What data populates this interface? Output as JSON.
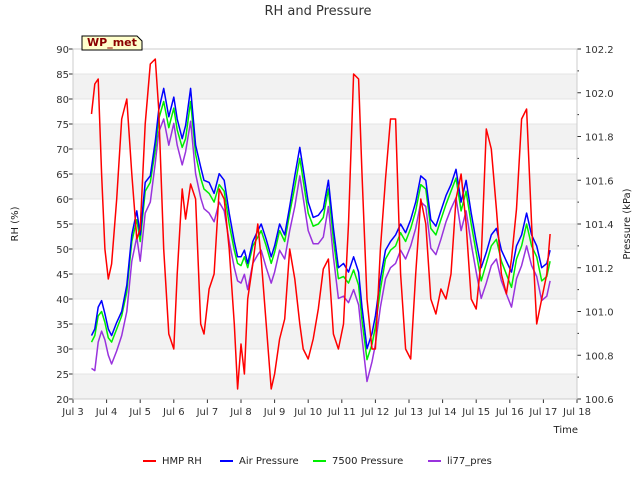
{
  "chart_data": {
    "type": "line",
    "title": "RH and Pressure",
    "site_label": "WP_met",
    "xlabel": "Time",
    "ylabel_left": "RH (%)",
    "ylabel_right": "Pressure (kPa)",
    "xlim": [
      3,
      18
    ],
    "ylim_left": [
      20,
      90
    ],
    "ylim_right": [
      100.6,
      102.2
    ],
    "x_ticks": [
      3,
      4,
      5,
      6,
      7,
      8,
      9,
      10,
      11,
      12,
      13,
      14,
      15,
      16,
      17,
      18
    ],
    "x_tick_labels": [
      "Jul 3",
      "Jul 4",
      "Jul 5",
      "Jul 6",
      "Jul 7",
      "Jul 8",
      "Jul 9",
      "Jul 10",
      "Jul 11",
      "Jul 12",
      "Jul 13",
      "Jul 14",
      "Jul 15",
      "Jul 16",
      "Jul 17",
      "Jul 18"
    ],
    "y_left_ticks": [
      20,
      25,
      30,
      35,
      40,
      45,
      50,
      55,
      60,
      65,
      70,
      75,
      80,
      85,
      90
    ],
    "y_right_ticks": [
      "100.6",
      "100.8",
      "101.0",
      "101.2",
      "101.4",
      "101.6",
      "101.8",
      "102.0",
      "102.2"
    ],
    "grid": true,
    "legend_position": "bottom",
    "series": [
      {
        "name": "HMP RH",
        "axis": "left",
        "color": "#ff0000",
        "x": [
          3.55,
          3.65,
          3.75,
          3.85,
          3.95,
          4.05,
          4.15,
          4.3,
          4.45,
          4.6,
          4.75,
          4.9,
          5.0,
          5.15,
          5.3,
          5.45,
          5.55,
          5.7,
          5.85,
          6.0,
          6.1,
          6.25,
          6.35,
          6.5,
          6.65,
          6.8,
          6.9,
          7.05,
          7.2,
          7.35,
          7.5,
          7.65,
          7.8,
          7.9,
          8.0,
          8.1,
          8.2,
          8.35,
          8.5,
          8.6,
          8.75,
          8.9,
          9.0,
          9.15,
          9.3,
          9.45,
          9.6,
          9.75,
          9.85,
          10.0,
          10.15,
          10.3,
          10.45,
          10.6,
          10.75,
          10.9,
          11.05,
          11.2,
          11.35,
          11.5,
          11.6,
          11.75,
          11.9,
          12.0,
          12.15,
          12.3,
          12.45,
          12.6,
          12.75,
          12.9,
          13.05,
          13.2,
          13.35,
          13.5,
          13.65,
          13.8,
          13.95,
          14.1,
          14.25,
          14.4,
          14.55,
          14.7,
          14.85,
          15.0,
          15.15,
          15.3,
          15.45,
          15.6,
          15.75,
          15.9,
          16.05,
          16.2,
          16.35,
          16.5,
          16.65,
          16.8,
          16.95,
          17.1,
          17.2
        ],
        "values": [
          77,
          83,
          84,
          65,
          50,
          44,
          47,
          60,
          76,
          80,
          65,
          52,
          54,
          75,
          87,
          88,
          78,
          50,
          33,
          30,
          45,
          62,
          56,
          63,
          60,
          35,
          33,
          42,
          45,
          62,
          60,
          50,
          35,
          22,
          31,
          25,
          40,
          47,
          55,
          48,
          35,
          22,
          25,
          32,
          36,
          50,
          44,
          35,
          30,
          28,
          32,
          38,
          46,
          48,
          33,
          30,
          35,
          55,
          85,
          84,
          65,
          40,
          30,
          30,
          50,
          64,
          76,
          76,
          45,
          30,
          28,
          45,
          60,
          55,
          40,
          37,
          42,
          40,
          45,
          60,
          65,
          55,
          40,
          38,
          48,
          74,
          70,
          58,
          45,
          41,
          48,
          58,
          76,
          78,
          55,
          35,
          40,
          45,
          53
        ]
      },
      {
        "name": "Air Pressure",
        "axis": "right",
        "color": "#0000ff",
        "x": [
          3.55,
          3.65,
          3.75,
          3.85,
          3.95,
          4.05,
          4.15,
          4.3,
          4.45,
          4.6,
          4.75,
          4.9,
          5.0,
          5.15,
          5.3,
          5.45,
          5.55,
          5.7,
          5.85,
          6.0,
          6.1,
          6.25,
          6.35,
          6.5,
          6.65,
          6.8,
          6.9,
          7.05,
          7.2,
          7.35,
          7.5,
          7.65,
          7.8,
          7.9,
          8.0,
          8.1,
          8.2,
          8.35,
          8.5,
          8.6,
          8.75,
          8.9,
          9.0,
          9.15,
          9.3,
          9.45,
          9.6,
          9.75,
          9.85,
          10.0,
          10.15,
          10.3,
          10.45,
          10.6,
          10.75,
          10.9,
          11.05,
          11.2,
          11.35,
          11.5,
          11.6,
          11.75,
          11.9,
          12.0,
          12.15,
          12.3,
          12.45,
          12.6,
          12.75,
          12.9,
          13.05,
          13.2,
          13.35,
          13.5,
          13.65,
          13.8,
          13.95,
          14.1,
          14.25,
          14.4,
          14.55,
          14.7,
          14.85,
          15.0,
          15.15,
          15.3,
          15.45,
          15.6,
          15.75,
          15.9,
          16.05,
          16.2,
          16.35,
          16.5,
          16.65,
          16.8,
          16.95,
          17.1,
          17.2
        ],
        "values": [
          100.89,
          100.92,
          101.02,
          101.05,
          100.99,
          100.92,
          100.89,
          100.95,
          101.0,
          101.12,
          101.35,
          101.46,
          101.35,
          101.59,
          101.62,
          101.78,
          101.92,
          102.02,
          101.89,
          101.98,
          101.88,
          101.79,
          101.85,
          102.02,
          101.76,
          101.66,
          101.6,
          101.59,
          101.54,
          101.63,
          101.6,
          101.45,
          101.32,
          101.25,
          101.25,
          101.28,
          101.22,
          101.32,
          101.37,
          101.4,
          101.33,
          101.25,
          101.3,
          101.4,
          101.35,
          101.48,
          101.62,
          101.75,
          101.65,
          101.5,
          101.43,
          101.44,
          101.47,
          101.6,
          101.38,
          101.2,
          101.22,
          101.18,
          101.25,
          101.18,
          101.02,
          100.83,
          100.9,
          100.98,
          101.15,
          101.28,
          101.32,
          101.35,
          101.4,
          101.36,
          101.42,
          101.5,
          101.62,
          101.6,
          101.42,
          101.39,
          101.46,
          101.53,
          101.58,
          101.65,
          101.5,
          101.6,
          101.45,
          101.32,
          101.2,
          101.27,
          101.35,
          101.38,
          101.28,
          101.23,
          101.18,
          101.3,
          101.35,
          101.45,
          101.35,
          101.3,
          101.2,
          101.22,
          101.28
        ]
      },
      {
        "name": "7500 Pressure",
        "axis": "right",
        "color": "#00ee00",
        "x": [
          3.55,
          3.65,
          3.75,
          3.85,
          3.95,
          4.05,
          4.15,
          4.3,
          4.45,
          4.6,
          4.75,
          4.9,
          5.0,
          5.15,
          5.3,
          5.45,
          5.55,
          5.7,
          5.85,
          6.0,
          6.1,
          6.25,
          6.35,
          6.5,
          6.65,
          6.8,
          6.9,
          7.05,
          7.2,
          7.35,
          7.5,
          7.65,
          7.8,
          7.9,
          8.0,
          8.1,
          8.2,
          8.35,
          8.5,
          8.6,
          8.75,
          8.9,
          9.0,
          9.15,
          9.3,
          9.45,
          9.6,
          9.75,
          9.85,
          10.0,
          10.15,
          10.3,
          10.45,
          10.6,
          10.75,
          10.9,
          11.05,
          11.2,
          11.35,
          11.5,
          11.6,
          11.75,
          11.9,
          12.0,
          12.15,
          12.3,
          12.45,
          12.6,
          12.75,
          12.9,
          13.05,
          13.2,
          13.35,
          13.5,
          13.65,
          13.8,
          13.95,
          14.1,
          14.25,
          14.4,
          14.55,
          14.7,
          14.85,
          15.0,
          15.15,
          15.3,
          15.45,
          15.6,
          15.75,
          15.9,
          16.05,
          16.2,
          16.35,
          16.5,
          16.65,
          16.8,
          16.95,
          17.1,
          17.2
        ],
        "values": [
          100.86,
          100.89,
          100.98,
          101.0,
          100.95,
          100.88,
          100.86,
          100.92,
          100.98,
          101.09,
          101.32,
          101.42,
          101.32,
          101.55,
          101.59,
          101.74,
          101.88,
          101.96,
          101.84,
          101.93,
          101.83,
          101.75,
          101.79,
          101.96,
          101.72,
          101.61,
          101.56,
          101.54,
          101.5,
          101.58,
          101.55,
          101.4,
          101.28,
          101.22,
          101.21,
          101.25,
          101.2,
          101.3,
          101.34,
          101.37,
          101.3,
          101.22,
          101.27,
          101.37,
          101.32,
          101.45,
          101.57,
          101.7,
          101.6,
          101.45,
          101.39,
          101.4,
          101.43,
          101.56,
          101.33,
          101.15,
          101.16,
          101.13,
          101.19,
          101.12,
          100.96,
          100.78,
          100.85,
          100.93,
          101.1,
          101.24,
          101.28,
          101.3,
          101.36,
          101.32,
          101.38,
          101.46,
          101.58,
          101.56,
          101.38,
          101.35,
          101.42,
          101.49,
          101.55,
          101.61,
          101.46,
          101.55,
          101.4,
          101.27,
          101.14,
          101.22,
          101.3,
          101.33,
          101.23,
          101.17,
          101.11,
          101.24,
          101.3,
          101.4,
          101.3,
          101.25,
          101.14,
          101.16,
          101.23
        ]
      },
      {
        "name": "li77_pres",
        "axis": "right",
        "color": "#9933dd",
        "x": [
          3.55,
          3.65,
          3.75,
          3.85,
          3.95,
          4.05,
          4.15,
          4.3,
          4.45,
          4.6,
          4.75,
          4.9,
          5.0,
          5.15,
          5.3,
          5.45,
          5.55,
          5.7,
          5.85,
          6.0,
          6.1,
          6.25,
          6.35,
          6.5,
          6.65,
          6.8,
          6.9,
          7.05,
          7.2,
          7.35,
          7.5,
          7.65,
          7.8,
          7.9,
          8.0,
          8.1,
          8.2,
          8.35,
          8.5,
          8.6,
          8.75,
          8.9,
          9.0,
          9.15,
          9.3,
          9.45,
          9.6,
          9.75,
          9.85,
          10.0,
          10.15,
          10.3,
          10.45,
          10.6,
          10.75,
          10.9,
          11.05,
          11.2,
          11.35,
          11.5,
          11.6,
          11.75,
          11.9,
          12.0,
          12.15,
          12.3,
          12.45,
          12.6,
          12.75,
          12.9,
          13.05,
          13.2,
          13.35,
          13.5,
          13.65,
          13.8,
          13.95,
          14.1,
          14.25,
          14.4,
          14.55,
          14.7,
          14.85,
          15.0,
          15.15,
          15.3,
          15.45,
          15.6,
          15.75,
          15.9,
          16.05,
          16.2,
          16.35,
          16.5,
          16.65,
          16.8,
          16.95,
          17.1,
          17.2
        ],
        "values": [
          100.74,
          100.73,
          100.86,
          100.91,
          100.87,
          100.8,
          100.76,
          100.82,
          100.89,
          101.0,
          101.23,
          101.34,
          101.23,
          101.45,
          101.5,
          101.68,
          101.82,
          101.88,
          101.76,
          101.86,
          101.76,
          101.67,
          101.73,
          101.87,
          101.63,
          101.52,
          101.47,
          101.45,
          101.41,
          101.5,
          101.46,
          101.32,
          101.2,
          101.14,
          101.13,
          101.17,
          101.1,
          101.22,
          101.26,
          101.28,
          101.2,
          101.13,
          101.18,
          101.28,
          101.24,
          101.37,
          101.48,
          101.62,
          101.52,
          101.37,
          101.31,
          101.31,
          101.34,
          101.48,
          101.25,
          101.06,
          101.07,
          101.04,
          101.1,
          101.03,
          100.88,
          100.68,
          100.77,
          100.85,
          101.02,
          101.15,
          101.2,
          101.22,
          101.28,
          101.24,
          101.3,
          101.38,
          101.5,
          101.48,
          101.29,
          101.26,
          101.33,
          101.41,
          101.47,
          101.52,
          101.37,
          101.46,
          101.31,
          101.18,
          101.06,
          101.13,
          101.21,
          101.24,
          101.14,
          101.08,
          101.02,
          101.15,
          101.21,
          101.3,
          101.21,
          101.16,
          101.05,
          101.07,
          101.14
        ]
      }
    ]
  }
}
